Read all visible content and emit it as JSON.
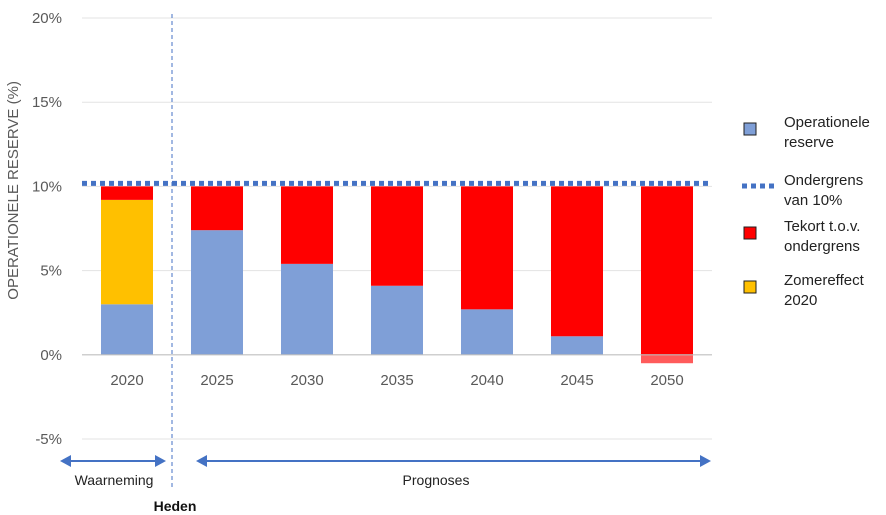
{
  "chart_data": {
    "type": "bar",
    "stacked": true,
    "categories": [
      "2020",
      "2025",
      "2030",
      "2035",
      "2040",
      "2045",
      "2050"
    ],
    "series": [
      {
        "name": "Operationele reserve",
        "color": "#7F9FD7",
        "values": [
          3.0,
          7.4,
          5.4,
          4.1,
          2.7,
          1.1,
          -0.5
        ]
      },
      {
        "name": "Zomereffect 2020",
        "color": "#FFC000",
        "values": [
          6.2,
          0,
          0,
          0,
          0,
          0,
          0
        ]
      },
      {
        "name": "Tekort t.o.v. ondergrens",
        "color": "#FF0000",
        "values": [
          0.8,
          2.6,
          4.6,
          5.9,
          7.3,
          8.9,
          10.0
        ]
      }
    ],
    "threshold": {
      "name": "Ondergrens van 10%",
      "value": 10,
      "color": "#4472C4",
      "style": "dotted"
    },
    "ylabel": "OPERATIONELE RESERVE (%)",
    "ylim": [
      -5,
      20
    ],
    "yticks": [
      -5,
      0,
      5,
      10,
      15,
      20
    ],
    "ytick_labels": [
      "-5%",
      "0%",
      "5%",
      "10%",
      "15%",
      "20%"
    ],
    "grid": true,
    "legend_position": "right",
    "legend": [
      {
        "lines": [
          "Operationele",
          "reserve"
        ],
        "color": "#7F9FD7",
        "kind": "box"
      },
      {
        "lines": [
          "Ondergrens",
          "van 10%"
        ],
        "color": "#4472C4",
        "kind": "dots"
      },
      {
        "lines": [
          "Tekort t.o.v.",
          "ondergrens"
        ],
        "color": "#FF0000",
        "kind": "box"
      },
      {
        "lines": [
          "Zomereffect",
          "2020"
        ],
        "color": "#FFC000",
        "kind": "box"
      }
    ],
    "annotations": {
      "waarneming": "Waarneming",
      "prognoses": "Prognoses",
      "heden": "Heden"
    }
  }
}
